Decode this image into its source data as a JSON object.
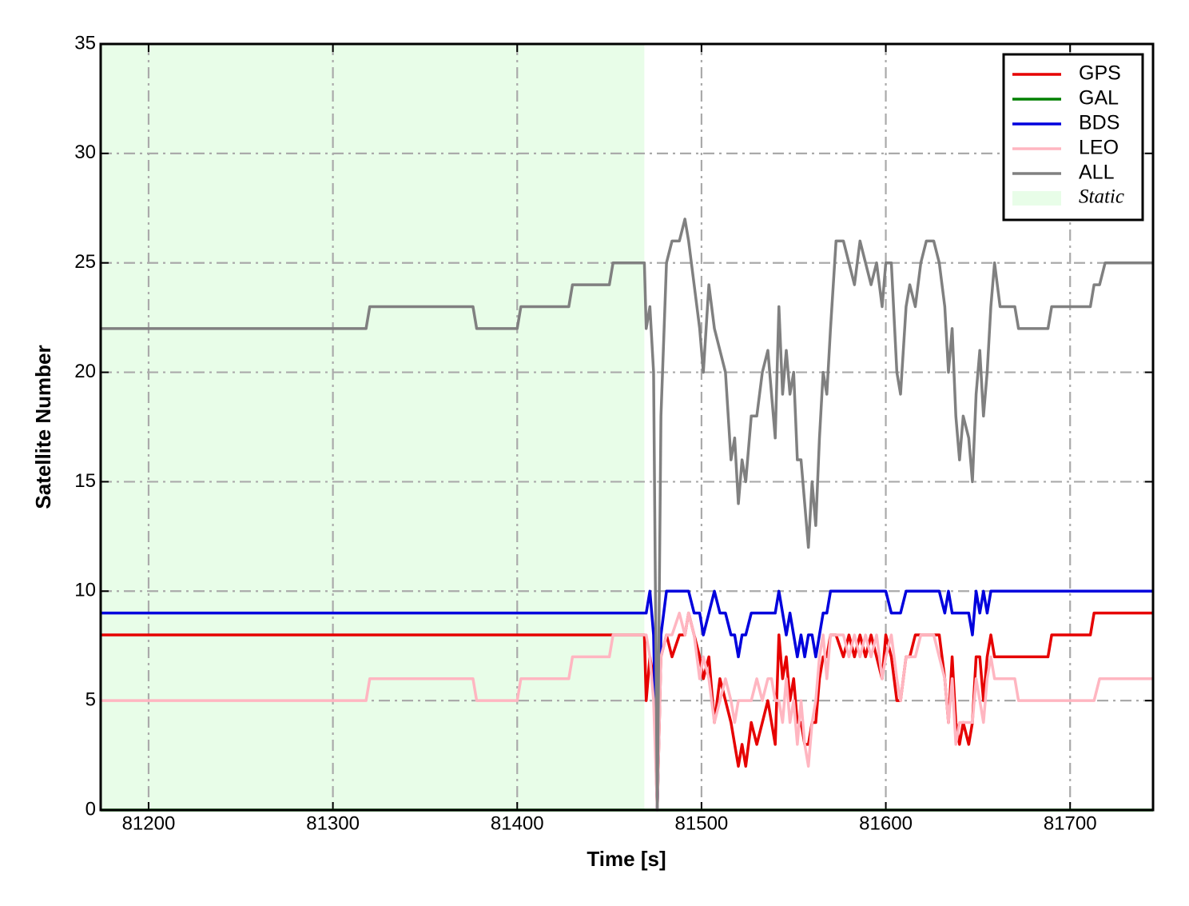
{
  "chart_data": {
    "type": "line",
    "x_label": "Time [s]",
    "y_label": "Satellite Number",
    "xlim": [
      81174,
      81745
    ],
    "ylim": [
      0,
      35
    ],
    "xticks": [
      81200,
      81300,
      81400,
      81500,
      81600,
      81700
    ],
    "yticks": [
      0,
      5,
      10,
      15,
      20,
      25,
      30,
      35
    ],
    "grid": true,
    "legend": "upper right",
    "shaded": {
      "label": "Static",
      "from": 81174,
      "to": 81469,
      "color": "#e8fde8"
    },
    "x": [
      81174,
      81318,
      81320,
      81376,
      81378,
      81400,
      81402,
      81428,
      81430,
      81450,
      81452,
      81469,
      81470,
      81472,
      81474,
      81476,
      81478,
      81481,
      81484,
      81488,
      81491,
      81493,
      81496,
      81499,
      81501,
      81504,
      81507,
      81510,
      81513,
      81516,
      81518,
      81520,
      81522,
      81524,
      81527,
      81530,
      81533,
      81536,
      81538,
      81540,
      81542,
      81544,
      81546,
      81548,
      81550,
      81552,
      81554,
      81556,
      81558,
      81560,
      81562,
      81564,
      81566,
      81568,
      81570,
      81573,
      81577,
      81580,
      81583,
      81586,
      81589,
      81592,
      81595,
      81598,
      81600,
      81603,
      81606,
      81608,
      81611,
      81613,
      81616,
      81619,
      81622,
      81626,
      81629,
      81632,
      81634,
      81636,
      81638,
      81640,
      81642,
      81645,
      81647,
      81649,
      81651,
      81653,
      81655,
      81657,
      81659,
      81662,
      81670,
      81672,
      81688,
      81690,
      81711,
      81713,
      81716,
      81719,
      81745
    ],
    "series": [
      {
        "name": "GPS",
        "color": "#e60000",
        "values": [
          8,
          8,
          8,
          8,
          8,
          8,
          8,
          8,
          8,
          8,
          8,
          8,
          5,
          7,
          6,
          0,
          7,
          8,
          7,
          8,
          8,
          9,
          8,
          7,
          6,
          7,
          4,
          6,
          5,
          4,
          3,
          2,
          3,
          2,
          4,
          3,
          4,
          5,
          4,
          3,
          8,
          6,
          7,
          5,
          6,
          4,
          4,
          3,
          3,
          4,
          4,
          6,
          7,
          7,
          8,
          8,
          7,
          8,
          7,
          8,
          7,
          8,
          7,
          6,
          8,
          7,
          5,
          5,
          7,
          7,
          8,
          8,
          8,
          8,
          8,
          6,
          4,
          7,
          4,
          3,
          4,
          3,
          4,
          7,
          7,
          5,
          7,
          8,
          7,
          7,
          7,
          7,
          7,
          8,
          8,
          9,
          9,
          9,
          9
        ]
      },
      {
        "name": "GAL",
        "color": "#008000",
        "values": [
          0,
          0,
          0,
          0,
          0,
          0,
          0,
          0,
          0,
          0,
          0,
          0,
          0,
          0,
          0,
          0,
          0,
          0,
          0,
          0,
          0,
          0,
          0,
          0,
          0,
          0,
          0,
          0,
          0,
          0,
          0,
          0,
          0,
          0,
          0,
          0,
          0,
          0,
          0,
          0,
          0,
          0,
          0,
          0,
          0,
          0,
          0,
          0,
          0,
          0,
          0,
          0,
          0,
          0,
          0,
          0,
          0,
          0,
          0,
          0,
          0,
          0,
          0,
          0,
          0,
          0,
          0,
          0,
          0,
          0,
          0,
          0,
          0,
          0,
          0,
          0,
          0,
          0,
          0,
          0,
          0,
          0,
          0,
          0,
          0,
          0,
          0,
          0,
          0,
          0,
          0,
          0,
          0,
          0,
          0,
          0,
          0,
          0,
          0
        ]
      },
      {
        "name": "BDS",
        "color": "#0000dd",
        "values": [
          9,
          9,
          9,
          9,
          9,
          9,
          9,
          9,
          9,
          9,
          9,
          9,
          9,
          10,
          8,
          0,
          8,
          10,
          10,
          10,
          10,
          10,
          9,
          9,
          8,
          9,
          10,
          9,
          9,
          8,
          8,
          7,
          8,
          8,
          9,
          9,
          9,
          9,
          9,
          9,
          10,
          9,
          8,
          9,
          8,
          7,
          8,
          7,
          8,
          8,
          7,
          8,
          9,
          9,
          10,
          10,
          10,
          10,
          10,
          10,
          10,
          10,
          10,
          10,
          10,
          9,
          9,
          9,
          10,
          10,
          10,
          10,
          10,
          10,
          10,
          9,
          10,
          9,
          9,
          9,
          9,
          9,
          8,
          10,
          9,
          10,
          9,
          10,
          10,
          10,
          10,
          10,
          10,
          10,
          10,
          10,
          10,
          10,
          10
        ]
      },
      {
        "name": "LEO",
        "color": "#ffb6c1",
        "values": [
          5,
          5,
          6,
          6,
          5,
          5,
          6,
          6,
          7,
          7,
          8,
          8,
          8,
          7,
          5,
          0,
          7,
          8,
          8,
          9,
          8,
          9,
          8,
          6,
          7,
          6,
          4,
          5,
          6,
          5,
          4,
          5,
          5,
          5,
          5,
          6,
          5,
          6,
          6,
          5,
          5,
          4,
          6,
          4,
          5,
          3,
          5,
          3,
          2,
          4,
          5,
          7,
          8,
          6,
          8,
          8,
          8,
          7,
          8,
          7,
          8,
          7,
          8,
          6,
          7,
          8,
          6,
          5,
          7,
          7,
          7,
          8,
          8,
          8,
          7,
          6,
          4,
          6,
          3,
          4,
          4,
          4,
          4,
          6,
          5,
          4,
          6,
          7,
          6,
          6,
          6,
          5,
          5,
          5,
          5,
          5,
          6,
          6,
          6
        ]
      },
      {
        "name": "ALL",
        "color": "#808080",
        "values": [
          22,
          22,
          23,
          23,
          22,
          22,
          23,
          23,
          24,
          24,
          25,
          25,
          22,
          23,
          20,
          0,
          18,
          25,
          26,
          26,
          27,
          26,
          24,
          22,
          20,
          24,
          22,
          21,
          20,
          16,
          17,
          14,
          16,
          15,
          18,
          18,
          20,
          21,
          19,
          17,
          23,
          19,
          21,
          19,
          20,
          16,
          16,
          14,
          12,
          15,
          13,
          17,
          20,
          19,
          22,
          26,
          26,
          25,
          24,
          26,
          25,
          24,
          25,
          23,
          25,
          25,
          20,
          19,
          23,
          24,
          23,
          25,
          26,
          26,
          25,
          23,
          20,
          22,
          18,
          16,
          18,
          17,
          15,
          19,
          21,
          18,
          20,
          23,
          25,
          23,
          23,
          22,
          22,
          23,
          23,
          24,
          24,
          25,
          25
        ]
      }
    ]
  }
}
